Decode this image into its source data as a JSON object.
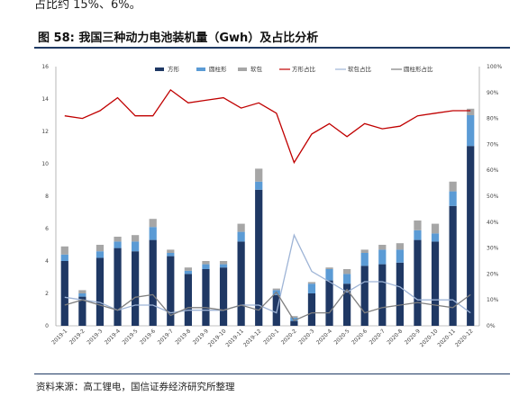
{
  "header_text": "占比约 15%、6%。",
  "figure": {
    "title": "图 58: 我国三种动力电池装机量（Gwh）及占比分析",
    "source": "资料来源：高工锂电，国信证券经济研究所整理"
  },
  "chart_data": {
    "type": "bar",
    "title": "",
    "xlabel": "",
    "ylabel": "",
    "stacked": true,
    "categories": [
      "2019-1",
      "2019-2",
      "2019-3",
      "2019-4",
      "2019-5",
      "2019-6",
      "2019-7",
      "2019-8",
      "2019-9",
      "2019-10",
      "2019-11",
      "2019-12",
      "2020-1",
      "2020-2",
      "2020-3",
      "2020-4",
      "2020-5",
      "2020-6",
      "2020-7",
      "2020-8",
      "2020-9",
      "2020-10",
      "2020-11",
      "2020-12"
    ],
    "ylim": [
      0,
      16
    ],
    "yticks": [
      "0",
      "2",
      "4",
      "6",
      "8",
      "10",
      "12",
      "14",
      "16"
    ],
    "y2lim": [
      0,
      100
    ],
    "y2ticks": [
      "0%",
      "10%",
      "20%",
      "30%",
      "40%",
      "50%",
      "60%",
      "70%",
      "80%",
      "90%",
      "100%"
    ],
    "legend_position": "top-right",
    "series": [
      {
        "name": "方形",
        "kind": "bar",
        "color": "#1f3864",
        "values": [
          4.0,
          1.8,
          4.2,
          4.8,
          4.6,
          5.3,
          4.3,
          3.2,
          3.5,
          3.6,
          5.2,
          8.4,
          1.9,
          0.3,
          2.0,
          2.8,
          2.6,
          3.7,
          3.8,
          3.9,
          5.3,
          5.2,
          7.4,
          11.1
        ]
      },
      {
        "name": "圆柱形",
        "kind": "bar",
        "color": "#5b9bd5",
        "values": [
          0.4,
          0.2,
          0.4,
          0.4,
          0.6,
          0.8,
          0.2,
          0.2,
          0.3,
          0.2,
          0.6,
          0.5,
          0.3,
          0.2,
          0.6,
          0.7,
          0.6,
          0.8,
          0.9,
          0.8,
          0.6,
          0.5,
          0.9,
          1.9
        ]
      },
      {
        "name": "软包",
        "kind": "bar",
        "color": "#a6a6a6",
        "values": [
          0.5,
          0.2,
          0.4,
          0.3,
          0.4,
          0.5,
          0.2,
          0.2,
          0.2,
          0.2,
          0.5,
          0.8,
          0.1,
          0.1,
          0.1,
          0.1,
          0.3,
          0.2,
          0.3,
          0.4,
          0.6,
          0.6,
          0.6,
          0.4
        ]
      },
      {
        "name": "方形占比",
        "kind": "line",
        "axis": "right",
        "color": "#c00000",
        "values": [
          81,
          80,
          83,
          88,
          81,
          81,
          91,
          86,
          87,
          88,
          84,
          86,
          82,
          63,
          74,
          78,
          73,
          78,
          76,
          77,
          81,
          82,
          83,
          83
        ]
      },
      {
        "name": "软包占比",
        "kind": "line",
        "axis": "right",
        "color": "#9eb4d6",
        "values": [
          11,
          10,
          9,
          6,
          8,
          8,
          5,
          6,
          6,
          6,
          8,
          8,
          5,
          35,
          21,
          17,
          13,
          17,
          17,
          15,
          10,
          10,
          10,
          5
        ]
      },
      {
        "name": "圆柱形占比",
        "kind": "line",
        "axis": "right",
        "color": "#7f7f7f",
        "values": [
          8,
          10,
          8,
          6,
          11,
          12,
          4,
          7,
          7,
          6,
          8,
          6,
          13,
          2,
          5,
          5,
          14,
          5,
          7,
          8,
          9,
          8,
          7,
          12
        ]
      }
    ]
  }
}
